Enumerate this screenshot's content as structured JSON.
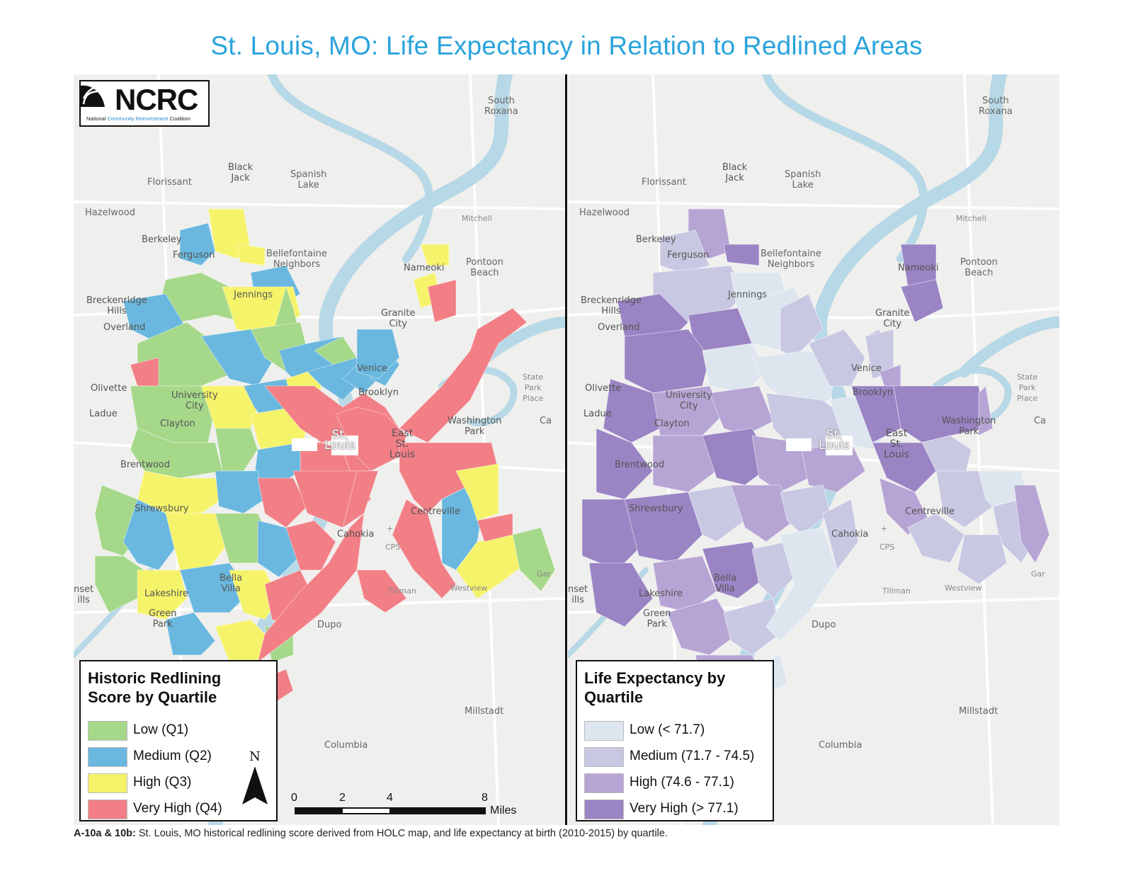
{
  "title": "St. Louis, MO: Life Expectancy in Relation to Redlined Areas",
  "logo": {
    "name": "NCRC",
    "subtitle_prefix": "National ",
    "subtitle_highlight": "Community Reinvestment",
    "subtitle_suffix": " Coalition"
  },
  "places": {
    "south_roxana": "South\nRoxana",
    "black_jack": "Black\nJack",
    "florissant": "Florissant",
    "spanish_lake": "Spanish\nLake",
    "hazelwood": "Hazelwood",
    "mitchell": "Mitchell",
    "berkeley": "Berkeley",
    "ferguson": "Ferguson",
    "bellefontaine": "Bellefontaine\nNeighbors",
    "nameoki": "Nameoki",
    "pontoon_beach": "Pontoon\nBeach",
    "breckenridge": "Breckenridge\nHills",
    "overland": "Overland",
    "jennings": "Jennings",
    "granite_city": "Granite\nCity",
    "venice": "Venice",
    "state_park": "State\nPark\nPlace",
    "olivette": "Olivette",
    "university_city": "University\nCity",
    "brooklyn": "Brooklyn",
    "ladue": "Ladue",
    "clayton": "Clayton",
    "st_louis": "St.\nLouis",
    "east_st_louis": "East\nSt.\nLouis",
    "washington_park": "Washington\nPark",
    "ca": "Ca",
    "brentwood": "Brentwood",
    "shrewsbury": "Shrewsbury",
    "centreville": "Centreville",
    "cahokia": "Cahokia",
    "cps": "CPS",
    "gar": "Gar",
    "sunset_hills": "nset\nills",
    "lakeshire": "Lakeshire",
    "bella_villa": "Bella\nVilla",
    "tillman": "Tillman",
    "westview": "Westview",
    "green_park": "Green\nPark",
    "dupo": "Dupo",
    "millstadt": "Millstadt",
    "columbia": "Columbia"
  },
  "legend_redlining": {
    "title": "Historic Redlining\nScore by Quartile",
    "items": [
      {
        "label": "Low (Q1)",
        "color": "#a6d88a"
      },
      {
        "label": "Medium (Q2)",
        "color": "#6ab8df"
      },
      {
        "label": "High (Q3)",
        "color": "#f5f36a"
      },
      {
        "label": "Very High (Q4)",
        "color": "#f27f86"
      }
    ]
  },
  "legend_life": {
    "title": "Life Expectancy by\nQuartile",
    "items": [
      {
        "label": "Low (< 71.7)",
        "color": "#dde5ef"
      },
      {
        "label": "Medium (71.7 - 74.5)",
        "color": "#c8c8e2"
      },
      {
        "label": "High (74.6 - 77.1)",
        "color": "#b6a5d4"
      },
      {
        "label": "Very High (> 77.1)",
        "color": "#9a84c4"
      }
    ]
  },
  "north_label": "N",
  "scale": {
    "ticks": [
      "0",
      "2",
      "4",
      "8"
    ],
    "unit": "Miles"
  },
  "caption": {
    "bold": "A-10a & 10b:",
    "text": " St. Louis, MO historical redlining score derived from HOLC map, and life expectancy at birth (2010-2015) by quartile."
  },
  "colors": {
    "title": "#2aa3dc",
    "river": "#b7d8e6",
    "land": "#efefed"
  }
}
